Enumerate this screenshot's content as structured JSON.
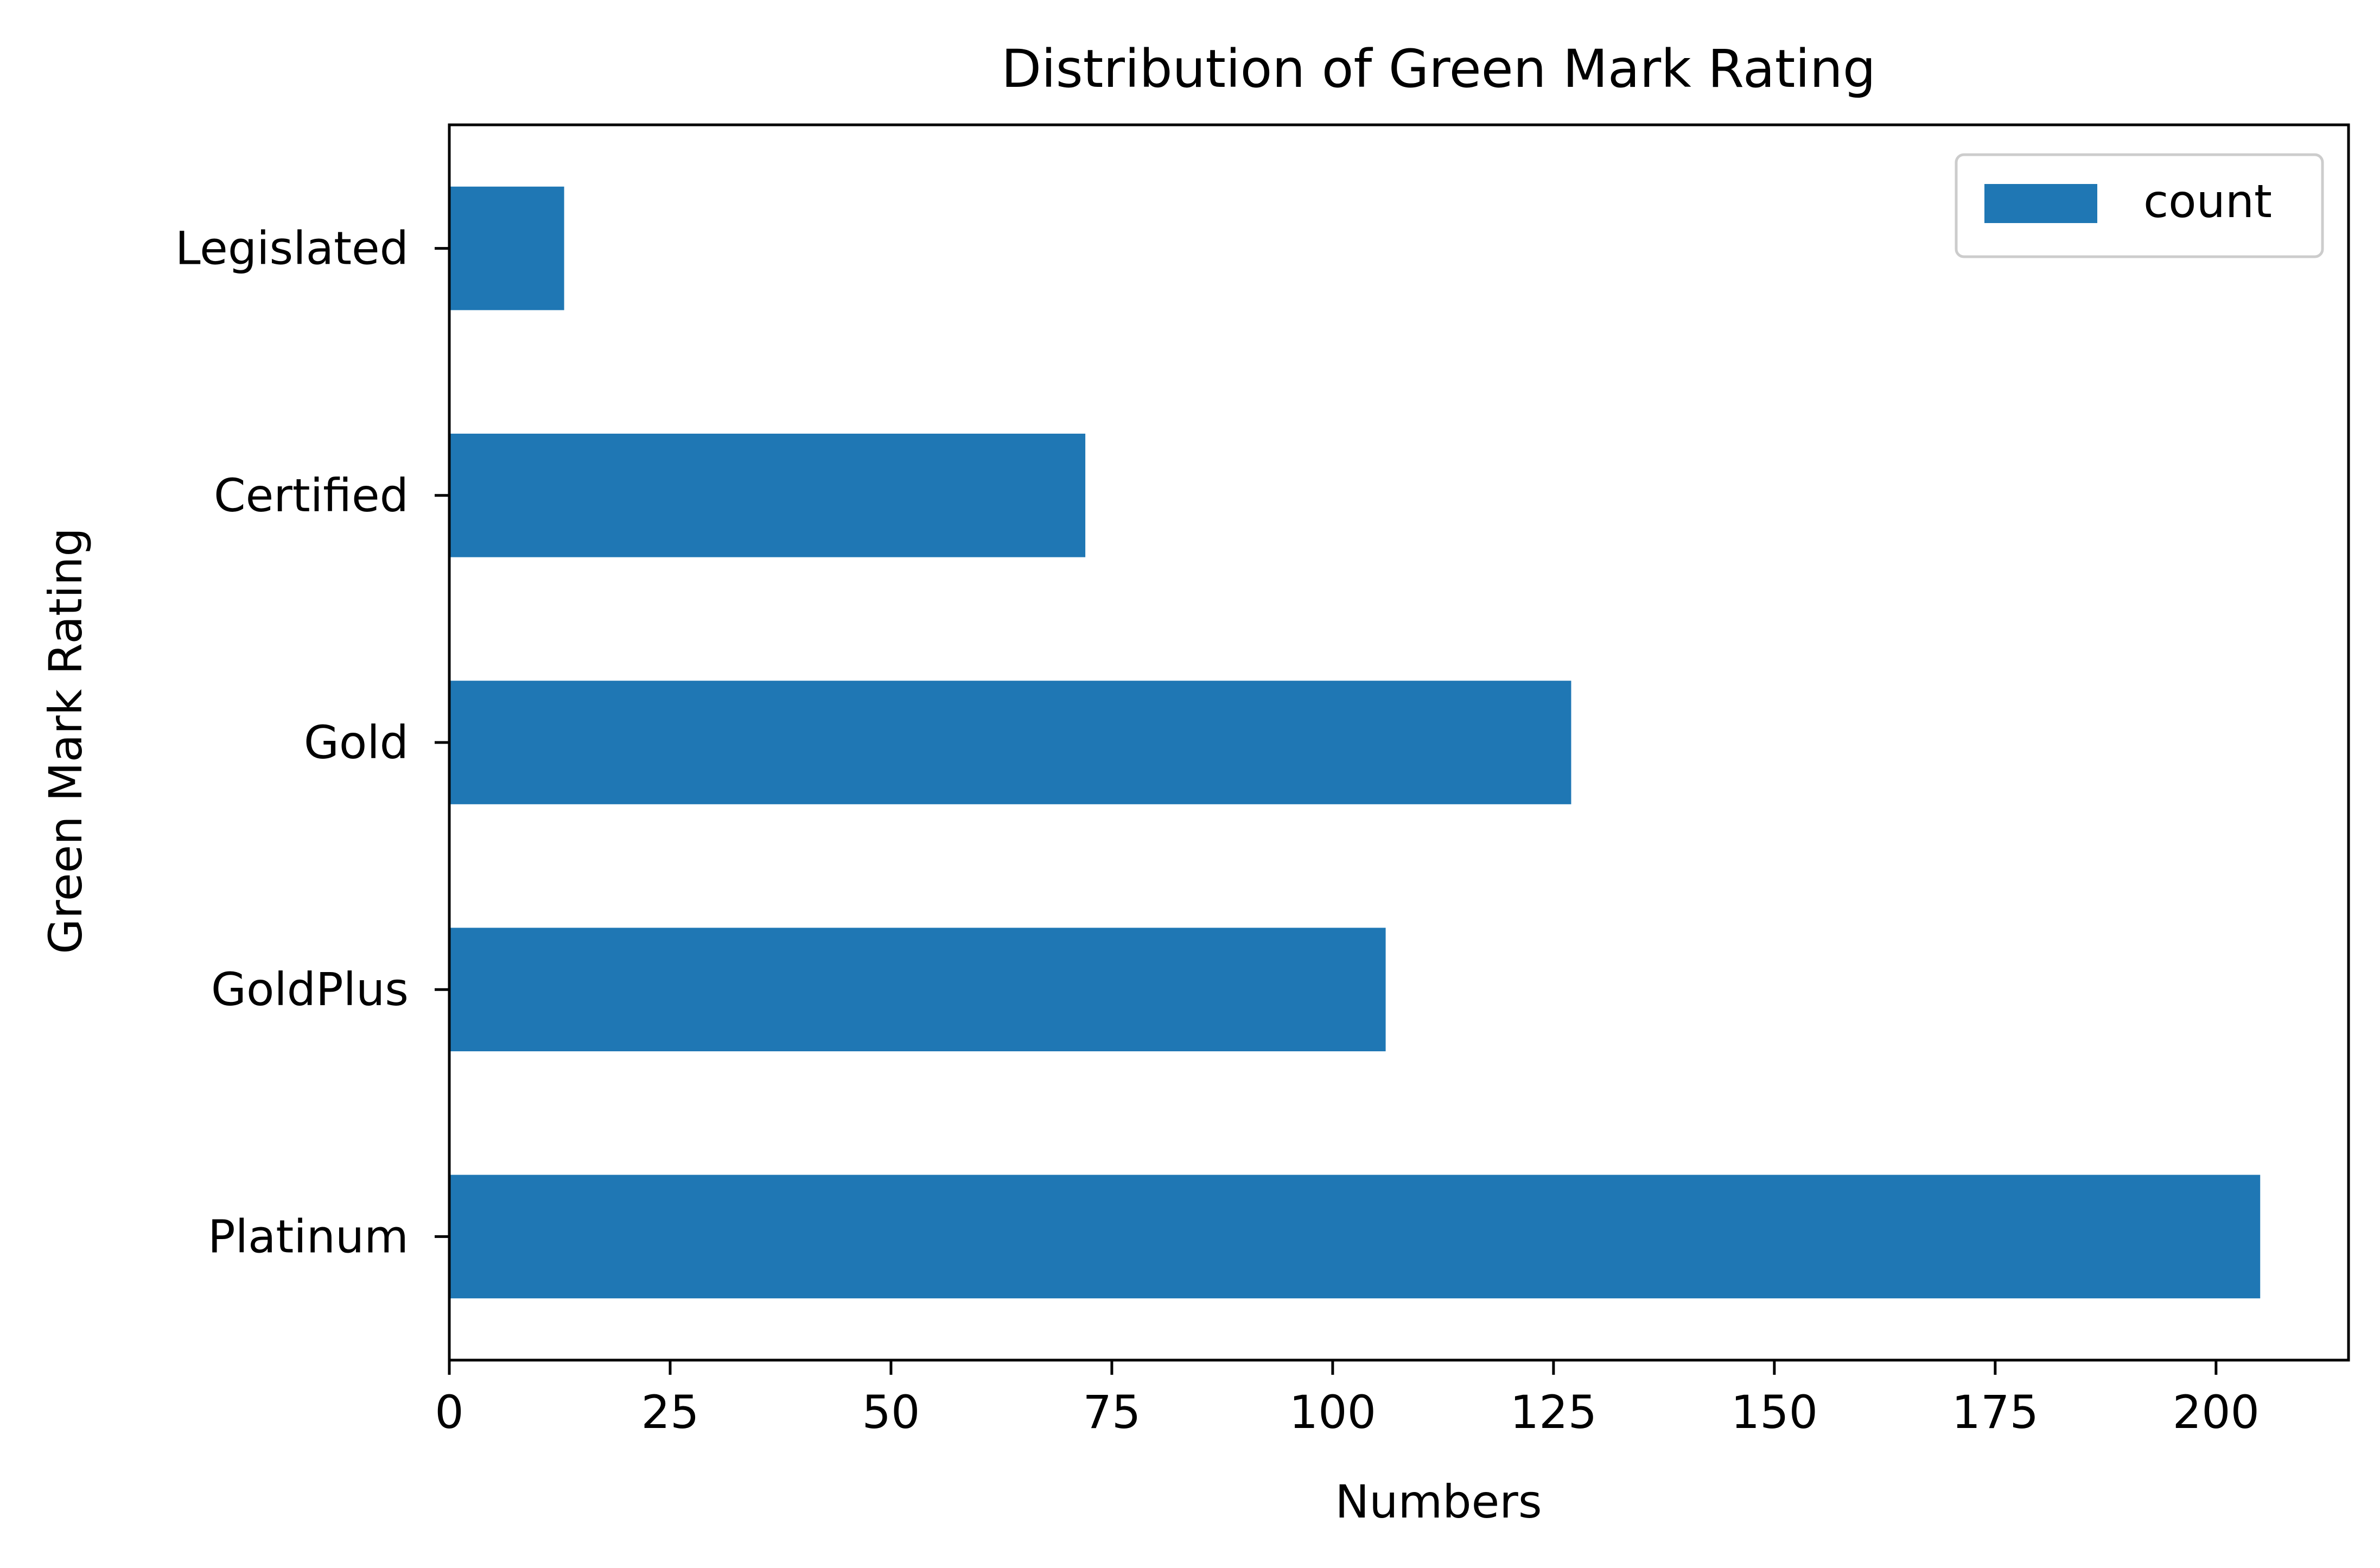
{
  "chart_data": {
    "type": "bar",
    "orientation": "horizontal",
    "title": "Distribution of Green Mark Rating",
    "xlabel": "Numbers",
    "ylabel": "Green Mark Rating",
    "categories": [
      "Platinum",
      "GoldPlus",
      "Gold",
      "Certified",
      "Legislated"
    ],
    "series": [
      {
        "name": "count",
        "values": [
          205,
          106,
          127,
          72,
          13
        ],
        "color": "#1f77b4"
      }
    ],
    "xlim": [
      0,
      215
    ],
    "xticks": [
      0,
      25,
      50,
      75,
      100,
      125,
      150,
      175,
      200
    ],
    "xtick_labels": [
      "0",
      "25",
      "50",
      "75",
      "100",
      "125",
      "150",
      "175",
      "200"
    ],
    "grid": false,
    "legend": {
      "placement": "top-right",
      "entries": [
        "count"
      ]
    }
  }
}
